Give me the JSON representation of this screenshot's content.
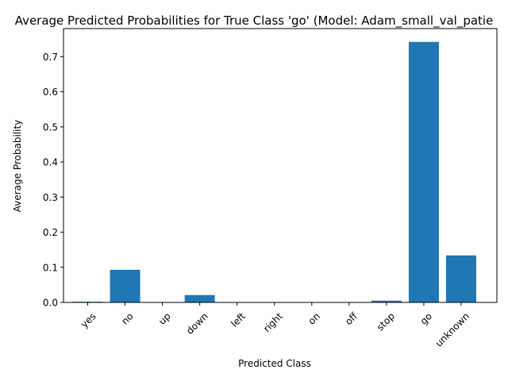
{
  "chart_data": {
    "type": "bar",
    "title": "Average Predicted Probabilities for True Class 'go' (Model: Adam_small_val_patie",
    "xlabel": "Predicted Class",
    "ylabel": "Average Probability",
    "categories": [
      "yes",
      "no",
      "up",
      "down",
      "left",
      "right",
      "on",
      "off",
      "stop",
      "go",
      "unknown"
    ],
    "values": [
      0.002,
      0.093,
      0.0005,
      0.021,
      0.0003,
      0.0003,
      0.0003,
      0.0003,
      0.005,
      0.742,
      0.134
    ],
    "ylim": [
      0,
      0.78
    ],
    "yticks": [
      0.0,
      0.1,
      0.2,
      0.3,
      0.4,
      0.5,
      0.6,
      0.7
    ],
    "ytick_labels": [
      "0.0",
      "0.1",
      "0.2",
      "0.3",
      "0.4",
      "0.5",
      "0.6",
      "0.7"
    ],
    "bar_color": "#1f77b4",
    "grid": false,
    "legend": "none"
  }
}
